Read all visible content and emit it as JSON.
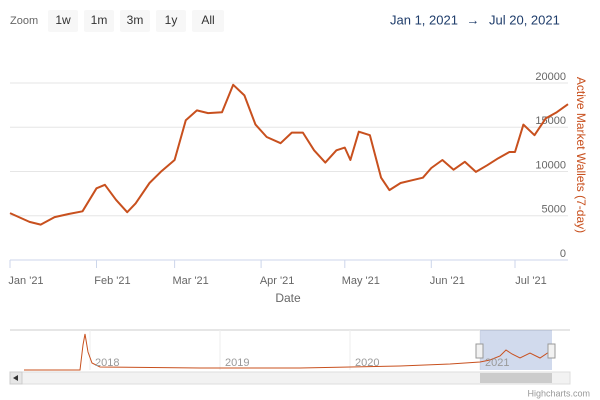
{
  "chart_data": {
    "type": "line",
    "zoom_label": "Zoom",
    "zoom_buttons": [
      "1w",
      "1m",
      "3m",
      "1y",
      "All"
    ],
    "range": {
      "from": "Jan 1, 2021",
      "arrow": "→",
      "to": "Jul 20, 2021"
    },
    "x_label": "Date",
    "y_label": "Active Market Wallets (7-day)",
    "xlim": [
      "2021-01-01",
      "2021-07-20"
    ],
    "xticks": [
      {
        "value": "2021-01-01",
        "label": "Jan '21"
      },
      {
        "value": "2021-02-01",
        "label": "Feb '21"
      },
      {
        "value": "2021-03-01",
        "label": "Mar '21"
      },
      {
        "value": "2021-04-01",
        "label": "Apr '21"
      },
      {
        "value": "2021-05-01",
        "label": "May '21"
      },
      {
        "value": "2021-06-01",
        "label": "Jun '21"
      },
      {
        "value": "2021-07-01",
        "label": "Jul '21"
      }
    ],
    "ylim": [
      0,
      20000
    ],
    "yticks": [
      0,
      5000,
      10000,
      15000,
      20000
    ],
    "grid": true,
    "series": [
      {
        "name": "Active Market Wallets (7-day)",
        "color": "#c8501e",
        "x": [
          "2021-01-01",
          "2021-01-08",
          "2021-01-12",
          "2021-01-17",
          "2021-01-22",
          "2021-01-27",
          "2021-02-01",
          "2021-02-04",
          "2021-02-08",
          "2021-02-12",
          "2021-02-15",
          "2021-02-20",
          "2021-02-24",
          "2021-03-01",
          "2021-03-05",
          "2021-03-09",
          "2021-03-13",
          "2021-03-18",
          "2021-03-22",
          "2021-03-26",
          "2021-03-30",
          "2021-04-03",
          "2021-04-08",
          "2021-04-12",
          "2021-04-16",
          "2021-04-20",
          "2021-04-24",
          "2021-04-28",
          "2021-05-01",
          "2021-05-03",
          "2021-05-06",
          "2021-05-10",
          "2021-05-14",
          "2021-05-17",
          "2021-05-21",
          "2021-05-25",
          "2021-05-29",
          "2021-06-01",
          "2021-06-05",
          "2021-06-09",
          "2021-06-13",
          "2021-06-17",
          "2021-06-21",
          "2021-06-25",
          "2021-06-29",
          "2021-07-01",
          "2021-07-04",
          "2021-07-08",
          "2021-07-12",
          "2021-07-16",
          "2021-07-20"
        ],
        "values": [
          5300,
          4300,
          4000,
          4850,
          5200,
          5500,
          8100,
          8500,
          6800,
          5400,
          6400,
          8700,
          9950,
          11300,
          15800,
          16900,
          16600,
          16700,
          19800,
          18600,
          15300,
          13900,
          13200,
          14400,
          14400,
          12400,
          11000,
          12400,
          12700,
          11300,
          14500,
          14100,
          9300,
          7900,
          8700,
          9000,
          9300,
          10400,
          11300,
          10200,
          11100,
          9950,
          10700,
          11500,
          12200,
          12200,
          15300,
          14100,
          16000,
          16700,
          17600
        ]
      }
    ],
    "navigator": {
      "labels": [
        "2018",
        "2019",
        "2020",
        "2021"
      ]
    },
    "credits": "Highcharts.com"
  }
}
